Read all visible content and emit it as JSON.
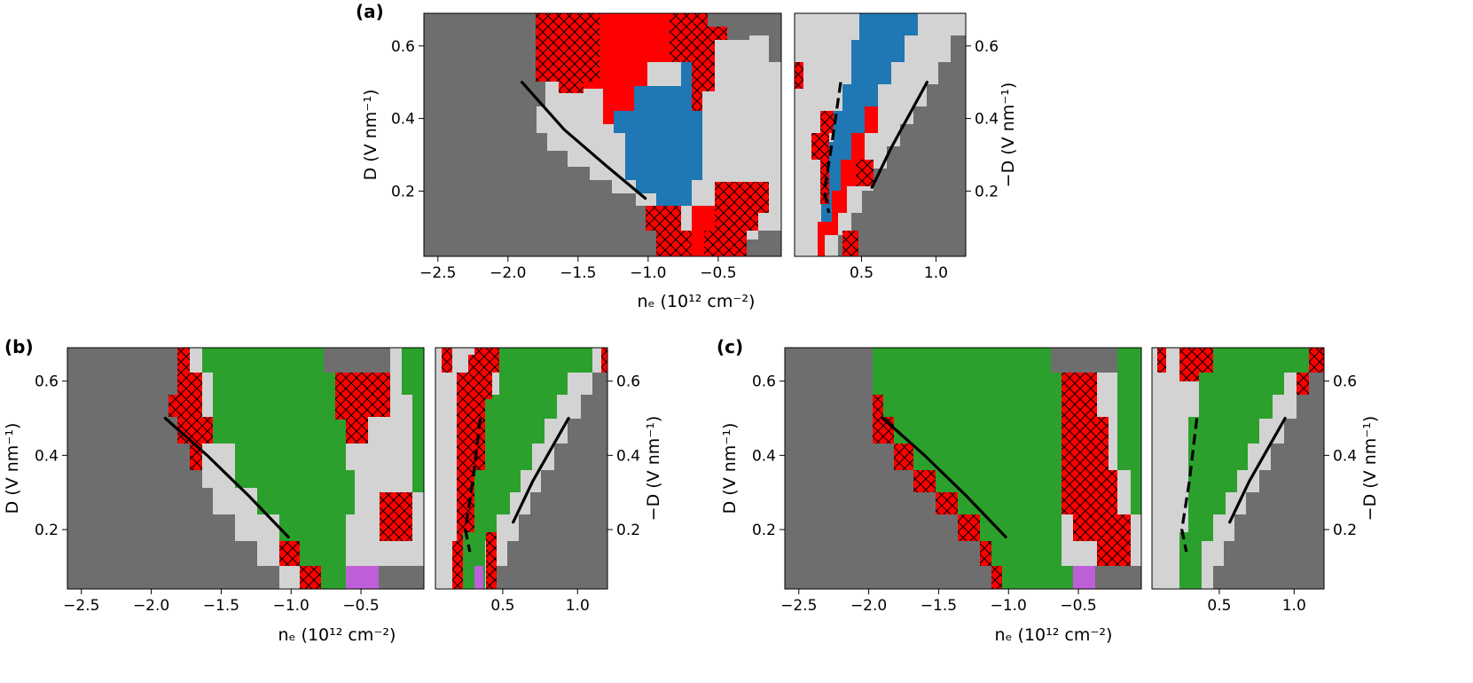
{
  "figure": {
    "panels": [
      "(a)",
      "(b)",
      "(c)"
    ],
    "xlabel_left": "nₑ (10¹² cm⁻²)",
    "ylabel_left": "D (V nm⁻¹)",
    "ylabel_right": "−D (V nm⁻¹)"
  },
  "colors": {
    "dark_gray": "#6e6e6e",
    "light_gray": "#d3d3d3",
    "red": "#ff0000",
    "blue": "#1f77b4",
    "green": "#2ca02c",
    "purple": "#bf5fd8"
  },
  "chart_data": [
    {
      "panel": "(a)",
      "type": "heatmap",
      "left": {
        "xlabel": "nₑ (10¹² cm⁻²)",
        "ylabel": "D (V nm⁻¹)",
        "xlim": [
          -2.6,
          -0.05
        ],
        "ylim": [
          0.02,
          0.69
        ],
        "xticks": [
          -2.5,
          -2.0,
          -1.5,
          -1.0,
          -0.5
        ],
        "xticklabels": [
          "−2.5",
          "−2.0",
          "−1.5",
          "−1.0",
          "−0.5"
        ],
        "yticks": [
          0.2,
          0.4,
          0.6
        ],
        "yticklabels": [
          "0.2",
          "0.4",
          "0.6"
        ],
        "solid_line": [
          [
            -1.9,
            0.5
          ],
          [
            -1.6,
            0.37
          ],
          [
            -1.3,
            0.27
          ],
          [
            -1.02,
            0.18
          ]
        ]
      },
      "right": {
        "ylabel": "−D (V nm⁻¹)",
        "xlim": [
          0.05,
          1.2
        ],
        "ylim": [
          0.02,
          0.69
        ],
        "xticks": [
          0.5,
          1.0
        ],
        "xticklabels": [
          "0.5",
          "1.0"
        ],
        "yticks": [
          0.2,
          0.4,
          0.6
        ],
        "yticklabels": [
          "0.2",
          "0.4",
          "0.6"
        ],
        "dashed_line": [
          [
            0.36,
            0.5
          ],
          [
            0.3,
            0.33
          ],
          [
            0.25,
            0.2
          ],
          [
            0.28,
            0.14
          ]
        ],
        "solid_line": [
          [
            0.57,
            0.21
          ],
          [
            0.7,
            0.32
          ],
          [
            0.94,
            0.5
          ]
        ]
      },
      "phases": [
        "dark_gray",
        "light_gray",
        "red",
        "red_hatched",
        "blue"
      ]
    },
    {
      "panel": "(b)",
      "type": "heatmap",
      "left": {
        "xlabel": "nₑ (10¹² cm⁻²)",
        "ylabel": "D (V nm⁻¹)",
        "xlim": [
          -2.6,
          -0.05
        ],
        "ylim": [
          0.04,
          0.69
        ],
        "xticks": [
          -2.5,
          -2.0,
          -1.5,
          -1.0,
          -0.5
        ],
        "xticklabels": [
          "−2.5",
          "−2.0",
          "−1.5",
          "−1.0",
          "−0.5"
        ],
        "yticks": [
          0.2,
          0.4,
          0.6
        ],
        "yticklabels": [
          "0.2",
          "0.4",
          "0.6"
        ],
        "solid_line": [
          [
            -1.9,
            0.5
          ],
          [
            -1.6,
            0.4
          ],
          [
            -1.3,
            0.29
          ],
          [
            -1.02,
            0.18
          ]
        ]
      },
      "right": {
        "ylabel": "−D (V nm⁻¹)",
        "xlim": [
          0.05,
          1.2
        ],
        "ylim": [
          0.04,
          0.69
        ],
        "xticks": [
          0.5,
          1.0
        ],
        "xticklabels": [
          "0.5",
          "1.0"
        ],
        "yticks": [
          0.2,
          0.4,
          0.6
        ],
        "yticklabels": [
          "0.2",
          "0.4",
          "0.6"
        ],
        "dashed_line": [
          [
            0.35,
            0.5
          ],
          [
            0.3,
            0.33
          ],
          [
            0.25,
            0.2
          ],
          [
            0.28,
            0.14
          ]
        ],
        "solid_line": [
          [
            0.57,
            0.22
          ],
          [
            0.7,
            0.33
          ],
          [
            0.94,
            0.5
          ]
        ]
      },
      "phases": [
        "dark_gray",
        "light_gray",
        "red_hatched",
        "green",
        "purple"
      ]
    },
    {
      "panel": "(c)",
      "type": "heatmap",
      "left": {
        "xlabel": "nₑ (10¹² cm⁻²)",
        "ylabel": "D (V nm⁻¹)",
        "xlim": [
          -2.6,
          -0.05
        ],
        "ylim": [
          0.04,
          0.69
        ],
        "xticks": [
          -2.5,
          -2.0,
          -1.5,
          -1.0,
          -0.5
        ],
        "xticklabels": [
          "−2.5",
          "−2.0",
          "−1.5",
          "−1.0",
          "−0.5"
        ],
        "yticks": [
          0.2,
          0.4,
          0.6
        ],
        "yticklabels": [
          "0.2",
          "0.4",
          "0.6"
        ],
        "solid_line": [
          [
            -1.9,
            0.5
          ],
          [
            -1.6,
            0.4
          ],
          [
            -1.3,
            0.29
          ],
          [
            -1.02,
            0.18
          ]
        ]
      },
      "right": {
        "ylabel": "−D (V nm⁻¹)",
        "xlim": [
          0.05,
          1.2
        ],
        "ylim": [
          0.04,
          0.69
        ],
        "xticks": [
          0.5,
          1.0
        ],
        "xticklabels": [
          "0.5",
          "1.0"
        ],
        "yticks": [
          0.2,
          0.4,
          0.6
        ],
        "yticklabels": [
          "0.2",
          "0.4",
          "0.6"
        ],
        "dashed_line": [
          [
            0.35,
            0.5
          ],
          [
            0.3,
            0.33
          ],
          [
            0.25,
            0.2
          ],
          [
            0.28,
            0.14
          ]
        ],
        "solid_line": [
          [
            0.57,
            0.22
          ],
          [
            0.7,
            0.33
          ],
          [
            0.94,
            0.5
          ]
        ]
      },
      "phases": [
        "dark_gray",
        "light_gray",
        "red_hatched",
        "green",
        "purple"
      ]
    }
  ]
}
